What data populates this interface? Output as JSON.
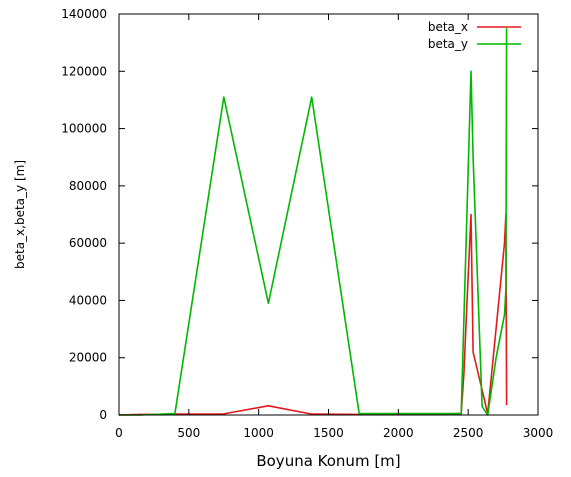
{
  "chart_data": {
    "type": "line",
    "xlabel": "Boyuna Konum [m]",
    "ylabel": "beta_x,beta_y [m]",
    "xlim": [
      0,
      3000
    ],
    "ylim": [
      0,
      140000
    ],
    "x_ticks": [
      "0",
      "500",
      "1000",
      "1500",
      "2000",
      "2500",
      "3000"
    ],
    "y_ticks": [
      "0",
      "20000",
      "40000",
      "60000",
      "80000",
      "100000",
      "120000",
      "140000"
    ],
    "legend_position": "top-right",
    "grid": false,
    "series": [
      {
        "name": "beta_x",
        "color": "#e31a1c",
        "points": [
          [
            0,
            0
          ],
          [
            150,
            200
          ],
          [
            300,
            200
          ],
          [
            400,
            300
          ],
          [
            750,
            400
          ],
          [
            1070,
            3200
          ],
          [
            1380,
            300
          ],
          [
            1720,
            200
          ],
          [
            2000,
            200
          ],
          [
            2300,
            300
          ],
          [
            2450,
            500
          ],
          [
            2470,
            15000
          ],
          [
            2490,
            38000
          ],
          [
            2520,
            70000
          ],
          [
            2535,
            22000
          ],
          [
            2640,
            500
          ],
          [
            2760,
            60000
          ],
          [
            2770,
            70000
          ],
          [
            2775,
            3500
          ]
        ]
      },
      {
        "name": "beta_y",
        "color": "#00b800",
        "points": [
          [
            0,
            0
          ],
          [
            150,
            0
          ],
          [
            400,
            500
          ],
          [
            750,
            111000
          ],
          [
            1070,
            39000
          ],
          [
            1380,
            111000
          ],
          [
            1720,
            500
          ],
          [
            2000,
            500
          ],
          [
            2300,
            500
          ],
          [
            2450,
            500
          ],
          [
            2520,
            120000
          ],
          [
            2535,
            90000
          ],
          [
            2600,
            3000
          ],
          [
            2640,
            0
          ],
          [
            2700,
            20000
          ],
          [
            2760,
            35000
          ],
          [
            2770,
            44000
          ],
          [
            2775,
            135000
          ]
        ]
      }
    ]
  }
}
